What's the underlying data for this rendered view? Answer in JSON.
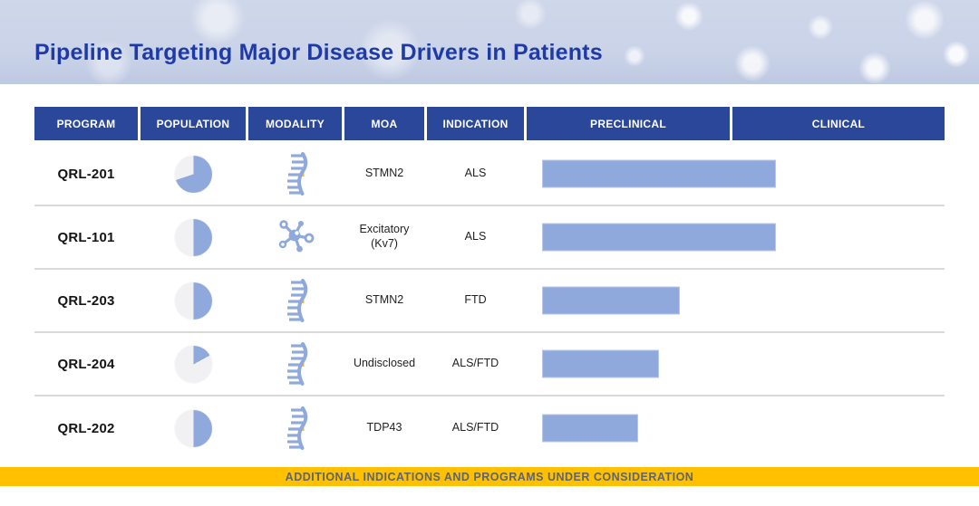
{
  "slide": {
    "title": "Pipeline Targeting Major Disease Drivers in Patients"
  },
  "table": {
    "headers": [
      "PROGRAM",
      "POPULATION",
      "MODALITY",
      "MOA",
      "INDICATION",
      "PRECLINICAL",
      "CLINICAL"
    ],
    "rows": [
      {
        "program": "QRL-201",
        "population_pct": 70,
        "modality_icon": "rna-strand-icon",
        "moa": "STMN2",
        "indication": "ALS",
        "progress_pct": 56
      },
      {
        "program": "QRL-101",
        "population_pct": 50,
        "modality_icon": "molecule-icon",
        "moa": "Excitatory (Kv7)",
        "indication": "ALS",
        "progress_pct": 56
      },
      {
        "program": "QRL-203",
        "population_pct": 50,
        "modality_icon": "rna-strand-icon",
        "moa": "STMN2",
        "indication": "FTD",
        "progress_pct": 33
      },
      {
        "program": "QRL-204",
        "population_pct": 17,
        "modality_icon": "rna-strand-icon",
        "moa": "Undisclosed",
        "indication": "ALS/FTD",
        "progress_pct": 28
      },
      {
        "program": "QRL-202",
        "population_pct": 50,
        "modality_icon": "rna-strand-icon",
        "moa": "TDP43",
        "indication": "ALS/FTD",
        "progress_pct": 23
      }
    ]
  },
  "footer": {
    "label": "ADDITIONAL INDICATIONS AND PROGRAMS UNDER CONSIDERATION"
  },
  "colors": {
    "accent_blue": "#8fa9dc",
    "pie_rest": "#f1f1f3",
    "header_blue": "#2b4799",
    "title_blue": "#1e3aa8",
    "banner_yellow": "#ffc000",
    "footer_text": "#5e6470",
    "divider_gray": "#dadada"
  }
}
